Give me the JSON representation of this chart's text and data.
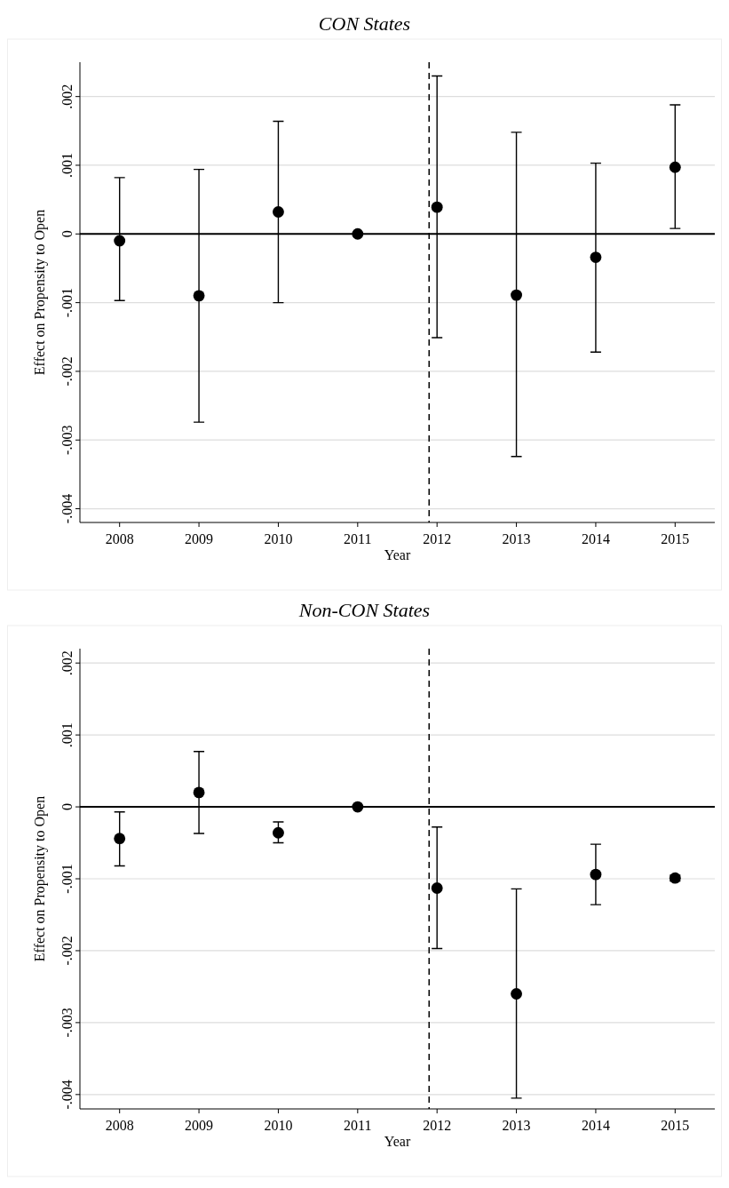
{
  "chart_data": [
    {
      "type": "scatter",
      "title": "CON States",
      "xlabel": "Year",
      "ylabel": "Effect on Propensity to Open",
      "x": [
        2008,
        2009,
        2010,
        2011,
        2012,
        2013,
        2014,
        2015
      ],
      "values": [
        -0.0001,
        -0.0009,
        0.00032,
        0,
        0.00039,
        -0.00089,
        -0.00034,
        0.00097
      ],
      "errors": [
        [
          -0.00097,
          0.00082
        ],
        [
          -0.00274,
          0.00094
        ],
        [
          -0.001,
          0.00164
        ],
        null,
        [
          -0.00151,
          0.0023
        ],
        [
          -0.00324,
          0.00148
        ],
        [
          -0.00172,
          0.00103
        ],
        [
          8e-05,
          0.00188
        ]
      ],
      "color": "#000000",
      "marker": "circle",
      "xlim": [
        2007.5,
        2015.5
      ],
      "xticks": [
        2008,
        2009,
        2010,
        2011,
        2012,
        2013,
        2014,
        2015
      ],
      "ylim": [
        -0.0042,
        0.0025
      ],
      "yticks": [
        {
          "value": -0.004,
          "label": "-.004"
        },
        {
          "value": -0.003,
          "label": "-.003"
        },
        {
          "value": -0.002,
          "label": "-.002"
        },
        {
          "value": -0.001,
          "label": "-.001"
        },
        {
          "value": 0,
          "label": "0"
        },
        {
          "value": 0.001,
          "label": ".001"
        },
        {
          "value": 0.002,
          "label": ".002"
        }
      ],
      "grid": "y",
      "ref_lines": [
        {
          "axis": "y",
          "value": 0,
          "color": "#000000",
          "line_style": "solid"
        },
        {
          "axis": "x",
          "value": 2011.9,
          "color": "#000000",
          "line_style": "dashed"
        }
      ]
    },
    {
      "type": "scatter",
      "title": "Non-CON States",
      "xlabel": "Year",
      "ylabel": "Effect on Propensity to Open",
      "x": [
        2008,
        2009,
        2010,
        2011,
        2012,
        2013,
        2014,
        2015
      ],
      "values": [
        -0.00044,
        0.0002,
        -0.00036,
        0,
        -0.00113,
        -0.0026,
        -0.00094,
        -0.00099
      ],
      "errors": [
        [
          -0.00082,
          -7e-05
        ],
        [
          -0.00037,
          0.00077
        ],
        [
          -0.0005,
          -0.00021
        ],
        null,
        [
          -0.00197,
          -0.00028
        ],
        [
          -0.00405,
          -0.00114
        ],
        [
          -0.00136,
          -0.00052
        ],
        [
          -0.00103,
          -0.00095
        ]
      ],
      "color": "#000000",
      "marker": "circle",
      "xlim": [
        2007.5,
        2015.5
      ],
      "xticks": [
        2008,
        2009,
        2010,
        2011,
        2012,
        2013,
        2014,
        2015
      ],
      "ylim": [
        -0.0042,
        0.0022
      ],
      "yticks": [
        {
          "value": -0.004,
          "label": "-.004"
        },
        {
          "value": -0.003,
          "label": "-.003"
        },
        {
          "value": -0.002,
          "label": "-.002"
        },
        {
          "value": -0.001,
          "label": "-.001"
        },
        {
          "value": 0,
          "label": "0"
        },
        {
          "value": 0.001,
          "label": ".001"
        },
        {
          "value": 0.002,
          "label": ".002"
        }
      ],
      "grid": "y",
      "ref_lines": [
        {
          "axis": "y",
          "value": 0,
          "color": "#000000",
          "line_style": "solid"
        },
        {
          "axis": "x",
          "value": 2011.9,
          "color": "#000000",
          "line_style": "dashed"
        }
      ]
    }
  ]
}
